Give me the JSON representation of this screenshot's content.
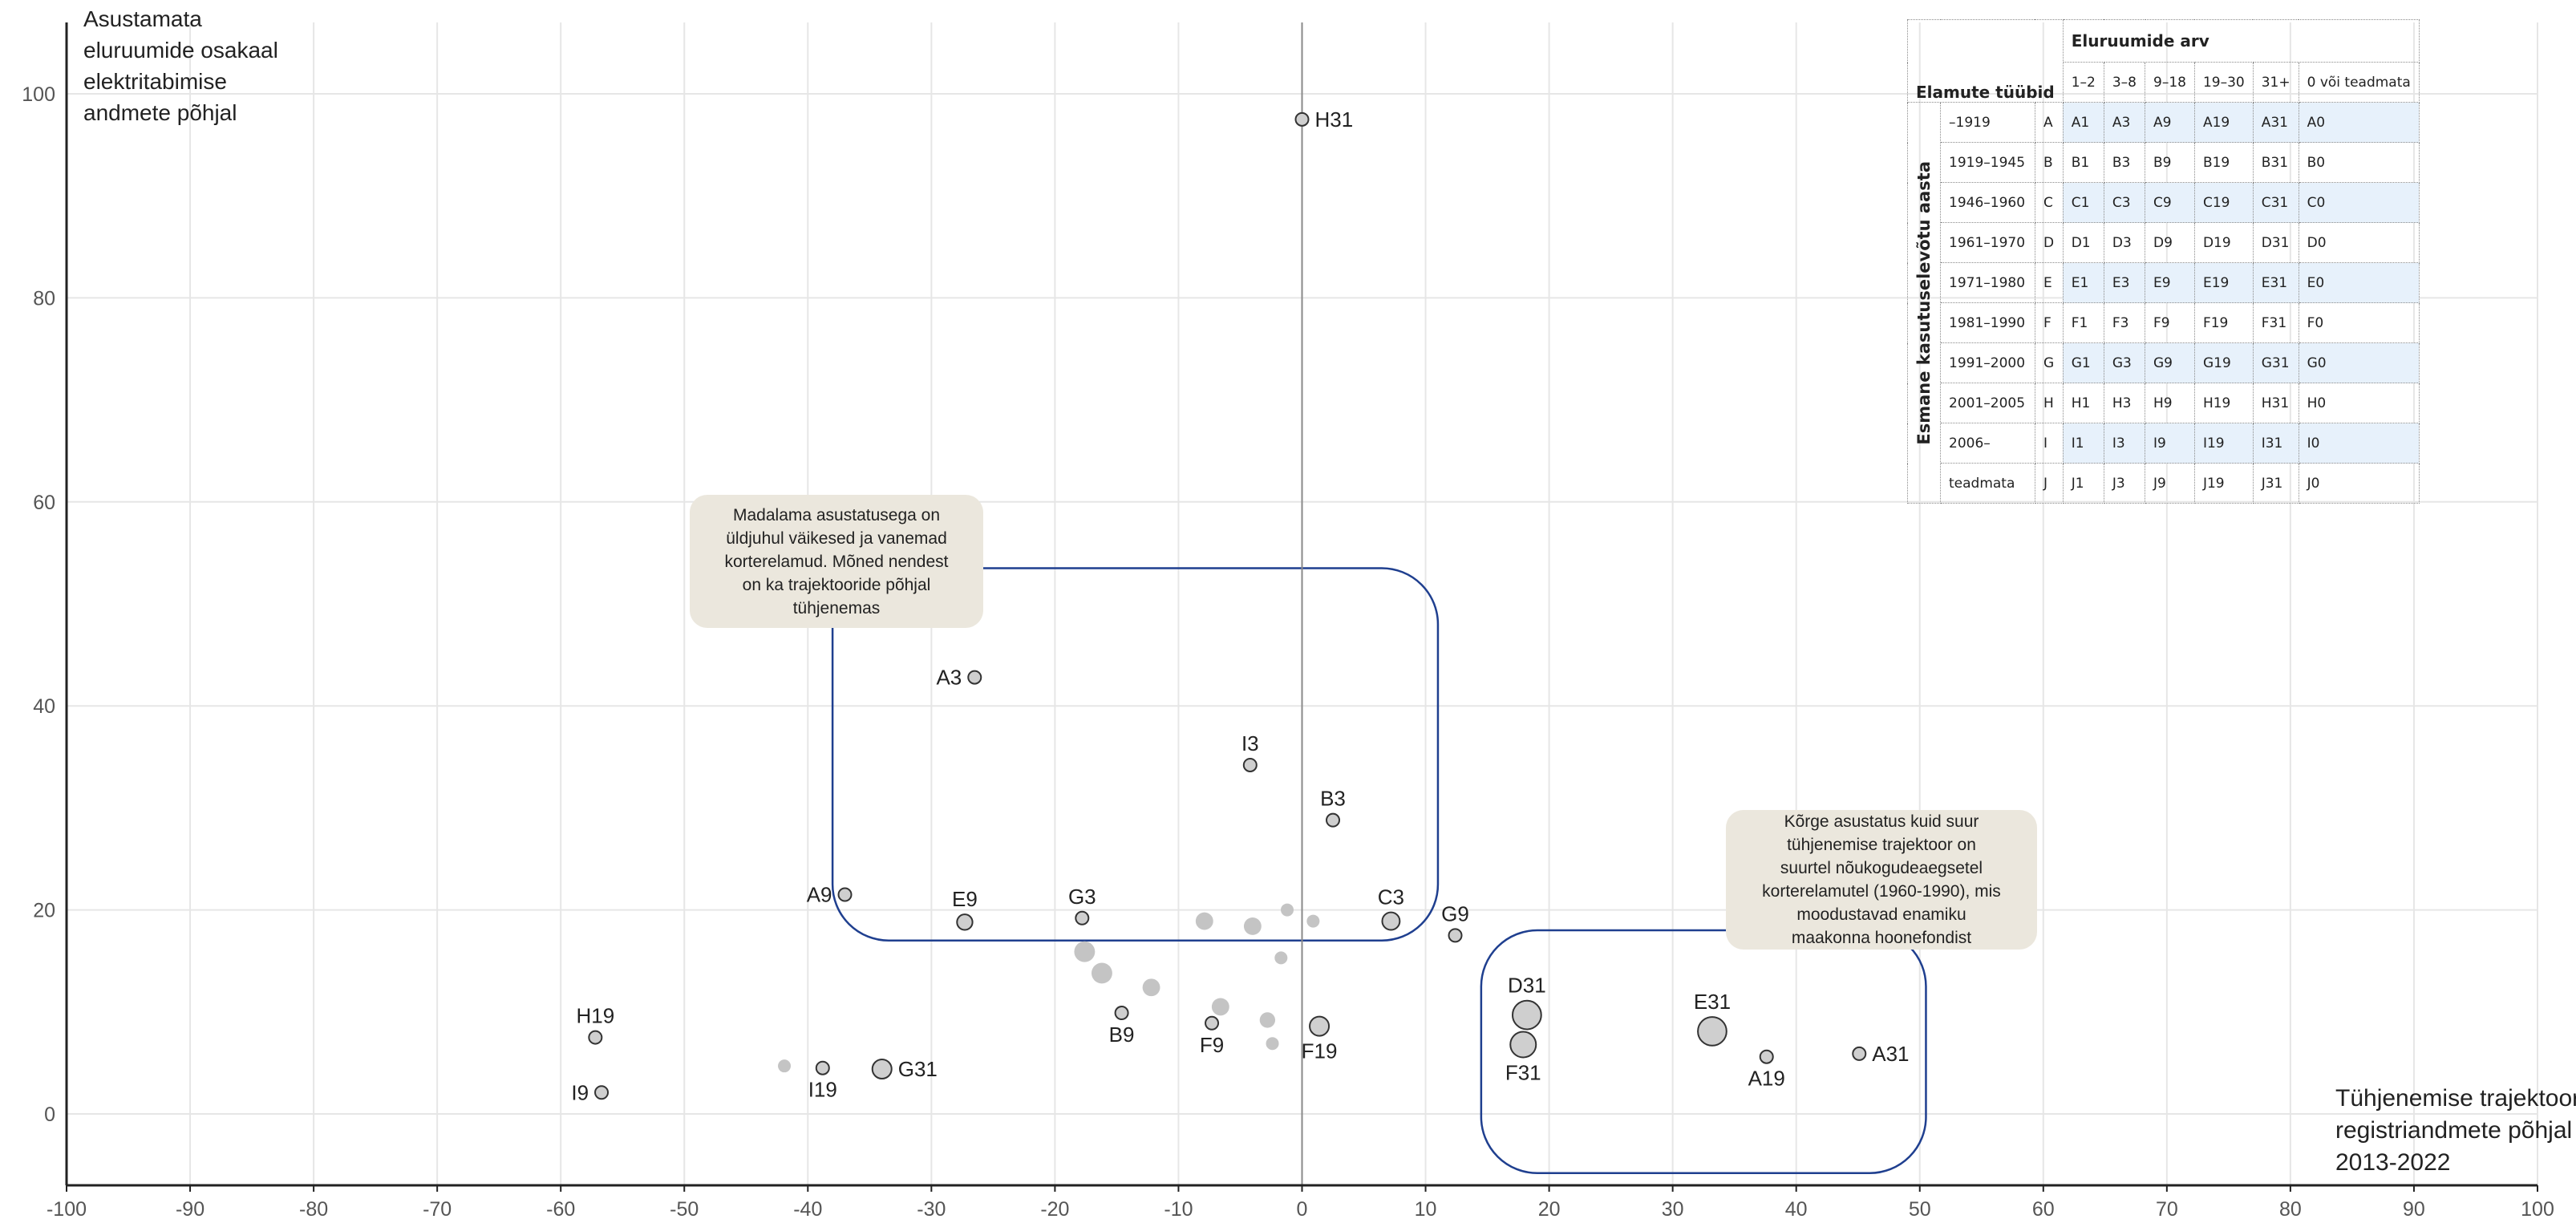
{
  "chart_data": {
    "type": "scatter",
    "xlabel": [
      "Tühjenemise trajektoor",
      "registriandmete põhjal",
      "2013-2022"
    ],
    "ylabel": [
      "Asustamata",
      "eluruumide osakaal",
      "elektritabimise",
      "andmete põhjal"
    ],
    "xlim": [
      -100,
      100
    ],
    "ylim": [
      -7,
      107
    ],
    "xticks": [
      -100,
      -90,
      -80,
      -70,
      -60,
      -50,
      -40,
      -30,
      -20,
      -10,
      0,
      10,
      20,
      30,
      40,
      50,
      60,
      70,
      80,
      90,
      100
    ],
    "yticks": [
      0,
      20,
      40,
      60,
      80,
      100
    ],
    "grid": true,
    "points": [
      {
        "label": "H31",
        "x": 0,
        "y": 97.5,
        "size": 1,
        "highlight": true
      },
      {
        "label": "A3",
        "x": -26.5,
        "y": 42.8,
        "size": 1,
        "highlight": true
      },
      {
        "label": "I3",
        "x": -4.2,
        "y": 34.2,
        "size": 1,
        "highlight": true
      },
      {
        "label": "B3",
        "x": 2.5,
        "y": 28.8,
        "size": 1,
        "highlight": true
      },
      {
        "label": "A9",
        "x": -37,
        "y": 21.5,
        "size": 1,
        "highlight": true
      },
      {
        "label": "E9",
        "x": -27.3,
        "y": 18.8,
        "size": 2,
        "highlight": true
      },
      {
        "label": "G3",
        "x": -17.8,
        "y": 19.2,
        "size": 1,
        "highlight": true
      },
      {
        "label": "C3",
        "x": 7.2,
        "y": 18.9,
        "size": 3,
        "highlight": true
      },
      {
        "label": "G9",
        "x": 12.4,
        "y": 17.5,
        "size": 1,
        "highlight": true
      },
      {
        "label": "H19",
        "x": -57.2,
        "y": 7.5,
        "size": 1,
        "highlight": true
      },
      {
        "label": "I9",
        "x": -56.7,
        "y": 2.1,
        "size": 1,
        "highlight": true
      },
      {
        "label": "I19",
        "x": -38.8,
        "y": 4.5,
        "size": 1,
        "highlight": true
      },
      {
        "label": "G31",
        "x": -34,
        "y": 4.4,
        "size": 4,
        "highlight": true
      },
      {
        "label": "B9",
        "x": -14.6,
        "y": 9.9,
        "size": 1,
        "highlight": true
      },
      {
        "label": "F9",
        "x": -7.3,
        "y": 8.9,
        "size": 1,
        "highlight": true
      },
      {
        "label": "F19",
        "x": 1.4,
        "y": 8.6,
        "size": 4,
        "highlight": true
      },
      {
        "label": "D31",
        "x": 18.2,
        "y": 9.7,
        "size": 12,
        "highlight": true
      },
      {
        "label": "F31",
        "x": 17.9,
        "y": 6.8,
        "size": 9,
        "highlight": true
      },
      {
        "label": "E31",
        "x": 33.2,
        "y": 8.1,
        "size": 12,
        "highlight": true
      },
      {
        "label": "A19",
        "x": 37.6,
        "y": 5.6,
        "size": 1,
        "highlight": true
      },
      {
        "label": "A31",
        "x": 45.1,
        "y": 5.9,
        "size": 1,
        "highlight": true
      },
      {
        "label": "",
        "x": -17.6,
        "y": 15.9,
        "size": 5,
        "highlight": false
      },
      {
        "label": "",
        "x": -16.2,
        "y": 13.8,
        "size": 5,
        "highlight": false
      },
      {
        "label": "",
        "x": -12.2,
        "y": 12.4,
        "size": 3,
        "highlight": false
      },
      {
        "label": "",
        "x": -7.9,
        "y": 18.9,
        "size": 3,
        "highlight": false
      },
      {
        "label": "",
        "x": -4,
        "y": 18.4,
        "size": 3,
        "highlight": false
      },
      {
        "label": "",
        "x": -1.2,
        "y": 20,
        "size": 1,
        "highlight": false
      },
      {
        "label": "",
        "x": 0.9,
        "y": 18.9,
        "size": 1,
        "highlight": false
      },
      {
        "label": "",
        "x": -1.7,
        "y": 15.3,
        "size": 1,
        "highlight": false
      },
      {
        "label": "",
        "x": -6.6,
        "y": 10.5,
        "size": 3,
        "highlight": false
      },
      {
        "label": "",
        "x": -2.8,
        "y": 9.2,
        "size": 2,
        "highlight": false
      },
      {
        "label": "",
        "x": -2.4,
        "y": 6.9,
        "size": 1,
        "highlight": false
      },
      {
        "label": "",
        "x": -41.9,
        "y": 4.7,
        "size": 1,
        "highlight": false
      }
    ],
    "annotations": [
      {
        "text": [
          "Madalama asustatusega on",
          "üldjuhul väikesed ja vanemad",
          "korterelamud. Mõned nendest",
          "on ka trajektooride põhjal",
          "tühjenemas"
        ]
      },
      {
        "text": [
          "Kõrge asustatus kuid suur",
          "tühjenemise trajektoor on",
          "suurtel nõukogudeaegsetel",
          "korterelamutel (1960-1990), mis",
          "moodustavad enamiku",
          "maakonna hoonefondist"
        ]
      }
    ],
    "regions": [
      {
        "x0": -38,
        "x1": 11,
        "y0": 17,
        "y1": 53.5
      },
      {
        "x0": 14.5,
        "x1": 50.5,
        "y0": -5.8,
        "y1": 18
      }
    ]
  },
  "legend_table": {
    "header": "Elamute tüübid",
    "group_header": "Eluruumide arv",
    "columns": [
      "1–2",
      "3–8",
      "9–18",
      "19–30",
      "31+",
      "0 või teadmata"
    ],
    "row_axis_label": "Esmane kasutuselevõtu aasta",
    "rows": [
      {
        "period": "–1919",
        "code": "A",
        "cells": [
          "A1",
          "A3",
          "A9",
          "A19",
          "A31",
          "A0"
        ]
      },
      {
        "period": "1919–1945",
        "code": "B",
        "cells": [
          "B1",
          "B3",
          "B9",
          "B19",
          "B31",
          "B0"
        ]
      },
      {
        "period": "1946–1960",
        "code": "C",
        "cells": [
          "C1",
          "C3",
          "C9",
          "C19",
          "C31",
          "C0"
        ]
      },
      {
        "period": "1961–1970",
        "code": "D",
        "cells": [
          "D1",
          "D3",
          "D9",
          "D19",
          "D31",
          "D0"
        ]
      },
      {
        "period": "1971–1980",
        "code": "E",
        "cells": [
          "E1",
          "E3",
          "E9",
          "E19",
          "E31",
          "E0"
        ]
      },
      {
        "period": "1981–1990",
        "code": "F",
        "cells": [
          "F1",
          "F3",
          "F9",
          "F19",
          "F31",
          "F0"
        ]
      },
      {
        "period": "1991–2000",
        "code": "G",
        "cells": [
          "G1",
          "G3",
          "G9",
          "G19",
          "G31",
          "G0"
        ]
      },
      {
        "period": "2001–2005",
        "code": "H",
        "cells": [
          "H1",
          "H3",
          "H9",
          "H19",
          "H31",
          "H0"
        ]
      },
      {
        "period": "2006–",
        "code": "I",
        "cells": [
          "I1",
          "I3",
          "I9",
          "I19",
          "I31",
          "I0"
        ]
      },
      {
        "period": "teadmata",
        "code": "J",
        "cells": [
          "J1",
          "J3",
          "J9",
          "J19",
          "J31",
          "J0"
        ]
      }
    ]
  },
  "colors": {
    "grid": "#e6e6e6",
    "axis": "#222222",
    "zero_line": "#8a8a8a",
    "region": "#1f3f8f",
    "point_fill": "#cfcfcf",
    "point_stroke": "#333333",
    "faded_point": "#c4c4c4",
    "annotation_bg": "#ebe7dd",
    "table_blue_row": "#e7f1fb"
  }
}
